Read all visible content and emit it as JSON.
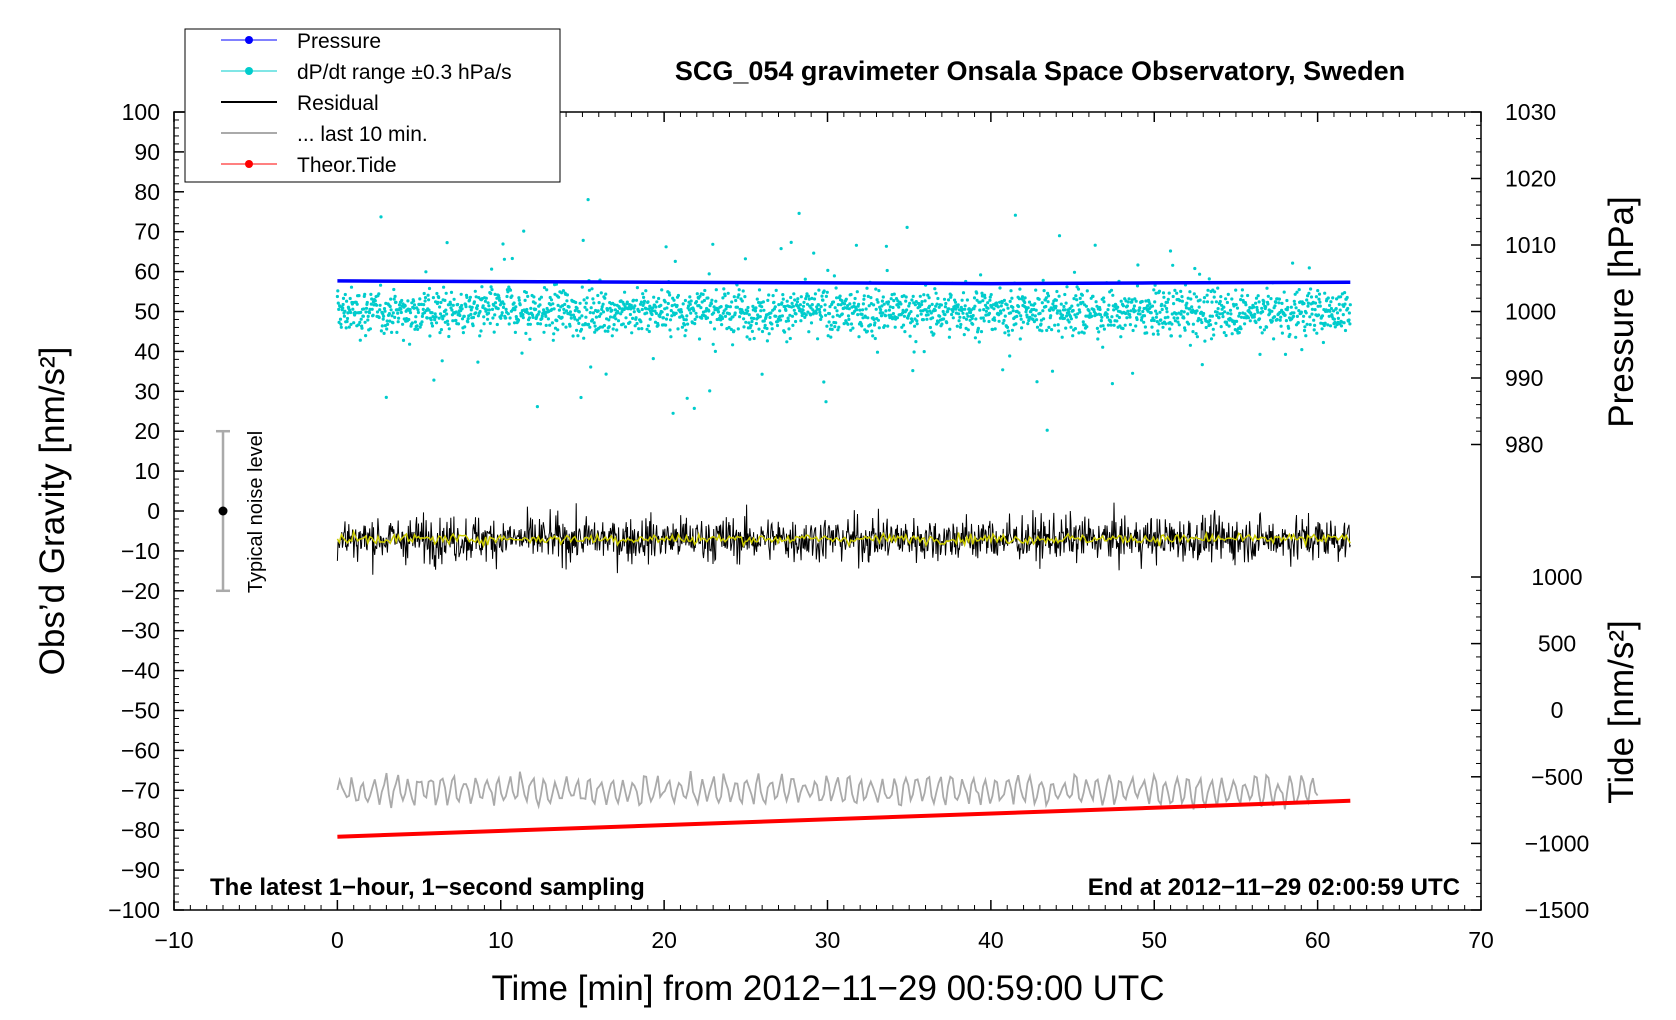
{
  "chart_data": {
    "type": "line",
    "title": "SCG_054 gravimeter Onsala Space Observatory, Sweden",
    "xlabel": "Time [min] from 2012−11−29 00:59:00 UTC",
    "ylabel": "Obs’d Gravity [nm/s²]",
    "ylabel_right_top": "Pressure [hPa]",
    "ylabel_right_bottom": "Tide [nm/s²]",
    "xlim": [
      -10,
      70
    ],
    "ylim": [
      -100,
      100
    ],
    "pressure_ylim": [
      970,
      1030
    ],
    "tide_ylim": [
      -1500,
      1000
    ],
    "x_ticks": [
      "−10",
      "0",
      "10",
      "20",
      "30",
      "40",
      "50",
      "60",
      "70"
    ],
    "y_ticks": [
      "100",
      "90",
      "80",
      "70",
      "60",
      "50",
      "40",
      "30",
      "20",
      "10",
      "0",
      "−10",
      "−20",
      "−30",
      "−40",
      "−50",
      "−60",
      "−70",
      "−80",
      "−90",
      "−100"
    ],
    "pressure_ticks": [
      "1030",
      "1020",
      "1010",
      "1000",
      "990",
      "980"
    ],
    "tide_ticks": [
      "1000",
      "500",
      "0",
      "−500",
      "−1000",
      "−1500"
    ],
    "grid": false,
    "legend_placement": "top-left",
    "legend": [
      {
        "label": "Pressure",
        "color": "#0000ff",
        "marker": "dot"
      },
      {
        "label": "dP/dt range ±0.3 hPa/s",
        "color": "#00cccc",
        "marker": "dot"
      },
      {
        "label": "Residual",
        "color": "#000000",
        "marker": "line"
      },
      {
        "label": "... last 10 min.",
        "color": "#aaaaaa",
        "marker": "line"
      },
      {
        "label": "Theor.Tide",
        "color": "#ff0000",
        "marker": "dot"
      }
    ],
    "series": [
      {
        "name": "Pressure",
        "axis": "pressure",
        "color": "#0000ff",
        "x": [
          0,
          10,
          20,
          30,
          40,
          50,
          62
        ],
        "y": [
          1004.6,
          1004.5,
          1004.4,
          1004.3,
          1004.2,
          1004.3,
          1004.4
        ]
      },
      {
        "name": "dP/dt range ±0.3 hPa/s",
        "axis": "gravity",
        "color": "#00cccc",
        "center": 50,
        "spread": 4,
        "x_range": [
          0,
          62
        ]
      },
      {
        "name": "Residual",
        "axis": "gravity",
        "color": "#000000",
        "center": -7,
        "amplitude": 4,
        "x_range": [
          0,
          62
        ]
      },
      {
        "name": "... last 10 min.",
        "axis": "gravity",
        "color": "#aaaaaa",
        "center": -70,
        "amplitude": 4,
        "x_range": [
          0,
          60
        ]
      },
      {
        "name": "Theor.Tide",
        "axis": "tide",
        "color": "#ff0000",
        "x": [
          0,
          62
        ],
        "y": [
          -950,
          -680
        ]
      }
    ],
    "yellow_trace_color": "#cccc00",
    "annotations": {
      "bottom_left": "The latest 1−hour, 1−second sampling",
      "bottom_right": "End at 2012−11−29 02:00:59 UTC",
      "noise_label": "Typical noise level"
    },
    "noise_bar": {
      "x": -7,
      "center": 0,
      "range": [
        -20,
        20
      ]
    }
  }
}
